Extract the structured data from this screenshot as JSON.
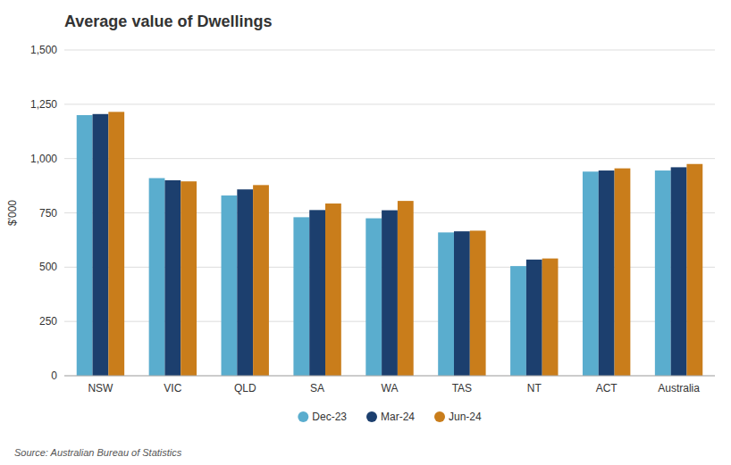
{
  "chart_data": {
    "type": "bar",
    "title": "Average value of Dwellings",
    "ylabel": "$'000",
    "annotations": [
      "Source: Australian Bureau of Statistics"
    ],
    "categories": [
      "NSW",
      "VIC",
      "QLD",
      "SA",
      "WA",
      "TAS",
      "NT",
      "ACT",
      "Australia"
    ],
    "series": [
      {
        "name": "Dec-23",
        "color": "#5aadce",
        "values": [
          1200,
          910,
          830,
          730,
          725,
          660,
          505,
          940,
          945
        ]
      },
      {
        "name": "Mar-24",
        "color": "#1c3f6e",
        "values": [
          1205,
          900,
          858,
          763,
          762,
          665,
          535,
          945,
          960
        ]
      },
      {
        "name": "Jun-24",
        "color": "#c97d1b",
        "values": [
          1215,
          895,
          878,
          793,
          805,
          668,
          540,
          955,
          975
        ]
      }
    ],
    "ylim": [
      0,
      1500
    ],
    "yticks": [
      0,
      250,
      500,
      750,
      {
        "value": 1000,
        "label": "1,000"
      },
      {
        "value": 1250,
        "label": "1,250"
      },
      {
        "value": 1500,
        "label": "1,500"
      }
    ],
    "grid": true,
    "legend": "bottom"
  }
}
